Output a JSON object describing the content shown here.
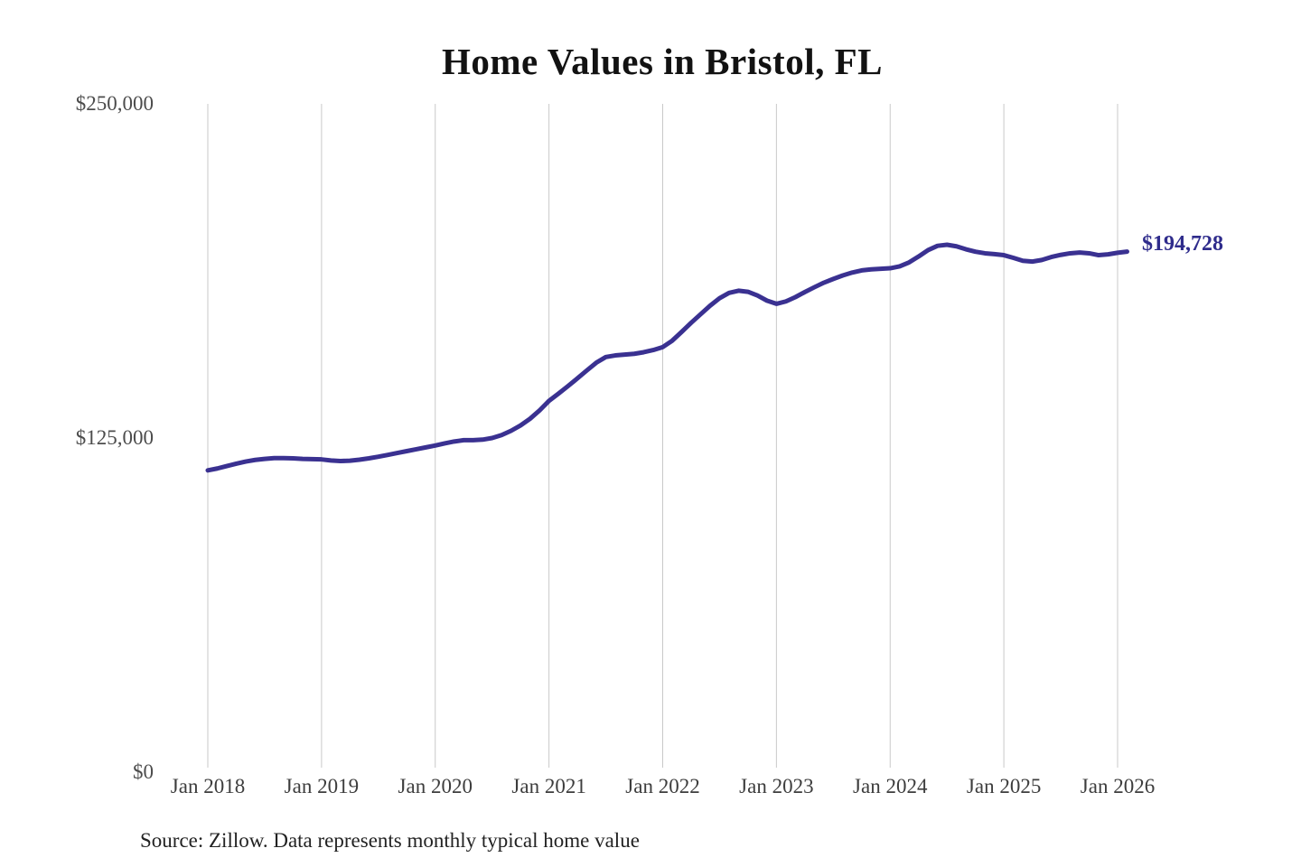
{
  "title": "Home Values in Bristol, FL",
  "source_note": "Source: Zillow. Data represents monthly typical home value",
  "colors": {
    "line": "#3a3191",
    "latest_value_label": "#2f2c8c",
    "gridline": "#c9c9c9",
    "title_text": "#121212",
    "y_tick_text": "#4c4c4c",
    "x_tick_text": "#3d3d3d",
    "source_text": "#222222",
    "background": "#ffffff"
  },
  "chart_data": {
    "type": "line",
    "title": "Home Values in Bristol, FL",
    "xlabel": "",
    "ylabel": "",
    "ylim": [
      0,
      250000
    ],
    "grid": "vertical-only",
    "legend": "none",
    "x_start": "Jan 2018",
    "x_end": "Feb 2026",
    "x_interval": "monthly",
    "x_ticks": [
      "Jan 2018",
      "Jan 2019",
      "Jan 2020",
      "Jan 2021",
      "Jan 2022",
      "Jan 2023",
      "Jan 2024",
      "Jan 2025",
      "Jan 2026"
    ],
    "y_ticks": [
      {
        "label": "$0",
        "value": 0
      },
      {
        "label": "$125,000",
        "value": 125000
      },
      {
        "label": "$250,000",
        "value": 250000
      }
    ],
    "end_label": "$194,728",
    "latest_value": 194728,
    "series": [
      {
        "name": "Monthly typical home value",
        "values": [
          112900,
          113600,
          114500,
          115400,
          116200,
          116800,
          117200,
          117500,
          117500,
          117400,
          117200,
          117100,
          117000,
          116600,
          116400,
          116500,
          116900,
          117400,
          118000,
          118700,
          119400,
          120100,
          120800,
          121500,
          122200,
          123000,
          123700,
          124200,
          124200,
          124400,
          125000,
          126100,
          127700,
          129700,
          132200,
          135300,
          138900,
          141600,
          144400,
          147300,
          150300,
          153200,
          155300,
          155900,
          156200,
          156500,
          157100,
          157900,
          159000,
          161400,
          164700,
          168100,
          171300,
          174500,
          177300,
          179300,
          180100,
          179700,
          178300,
          176400,
          175200,
          176100,
          177700,
          179600,
          181400,
          183100,
          184500,
          185800,
          186900,
          187700,
          188100,
          188300,
          188500,
          189200,
          190700,
          192900,
          195300,
          196900,
          197300,
          196700,
          195600,
          194700,
          194100,
          193800,
          193400,
          192400,
          191300,
          191000,
          191600,
          192700,
          193500,
          194100,
          194400,
          194100,
          193400,
          193700,
          194300,
          194728
        ]
      }
    ]
  }
}
